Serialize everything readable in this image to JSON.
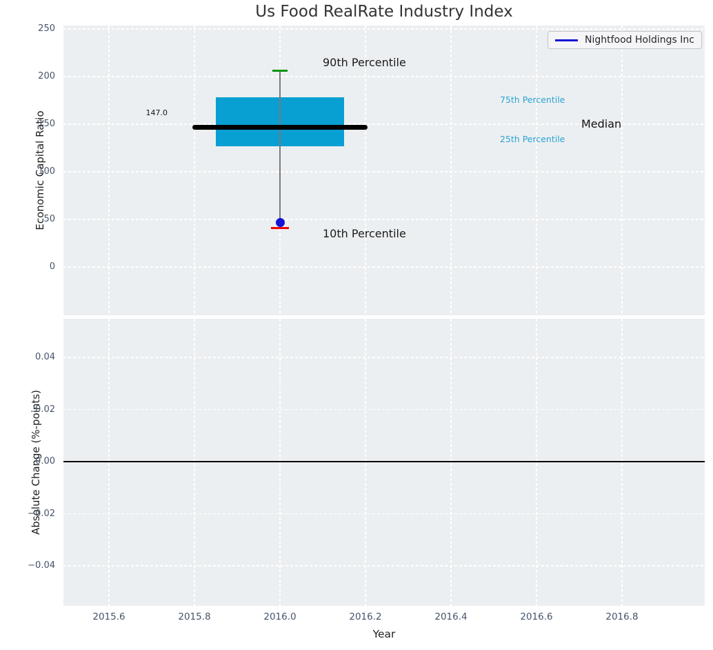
{
  "title": "Us Food RealRate Industry Index",
  "legend": {
    "label": "Nightfood Holdings Inc",
    "line_color": "#1212D8"
  },
  "colors": {
    "axes_background": "#ECEFF1",
    "grid": "#FFFFFF",
    "box_fill": "#089FD3",
    "median_line": "#000000",
    "p90_cap": "#0A9310",
    "p10_cap": "#EE0600",
    "company_marker": "#1212D8",
    "tick_label": "#44536A",
    "percentile_text": "#2AA3D4"
  },
  "chart_data": [
    {
      "type": "box",
      "title": "Us Food RealRate Industry Index",
      "ylabel": "Economic Capital Ratio",
      "xlabel": "",
      "grid": "white dashed, on",
      "legend_position": "upper right",
      "xlim": [
        2015.49,
        2016.99
      ],
      "ylim": [
        -51,
        254
      ],
      "ytick_values": [
        0,
        50,
        100,
        150,
        200,
        250
      ],
      "ytick_labels": [
        "0",
        "50",
        "100",
        "150",
        "200",
        "250"
      ],
      "box": {
        "x": 2016.0,
        "box_width_years": 0.3,
        "p10": 41,
        "p25": 127,
        "median": 147.0,
        "p75": 178,
        "p90": 206,
        "median_label": "147.0",
        "median_line_halfwidth_years": 0.205
      },
      "series": [
        {
          "name": "Nightfood Holdings Inc",
          "x": [
            2016.0
          ],
          "y": [
            47
          ],
          "marker": "circle",
          "color": "#1212D8"
        }
      ],
      "labels": {
        "p90": "90th Percentile",
        "p10": "10th Percentile",
        "p75": "75th Percentile",
        "p25": "25th Percentile",
        "median": "Median",
        "median_value": "147.0"
      }
    },
    {
      "type": "line",
      "ylabel": "Absolute Change (%-points)",
      "xlabel": "Year",
      "grid": "white dashed, on",
      "xlim": [
        2015.49,
        2016.99
      ],
      "ylim": [
        -0.055,
        0.055
      ],
      "xtick_values": [
        2015.6,
        2015.8,
        2016.0,
        2016.2,
        2016.4,
        2016.6,
        2016.8
      ],
      "xtick_labels": [
        "2015.6",
        "2015.8",
        "2016.0",
        "2016.2",
        "2016.4",
        "2016.6",
        "2016.8"
      ],
      "ytick_values": [
        0.04,
        0.02,
        0.0,
        -0.02,
        -0.04
      ],
      "ytick_labels": [
        "0.04",
        "0.02",
        "0.00",
        "−0.02",
        "−0.04"
      ],
      "hline": 0.0,
      "series": []
    }
  ]
}
